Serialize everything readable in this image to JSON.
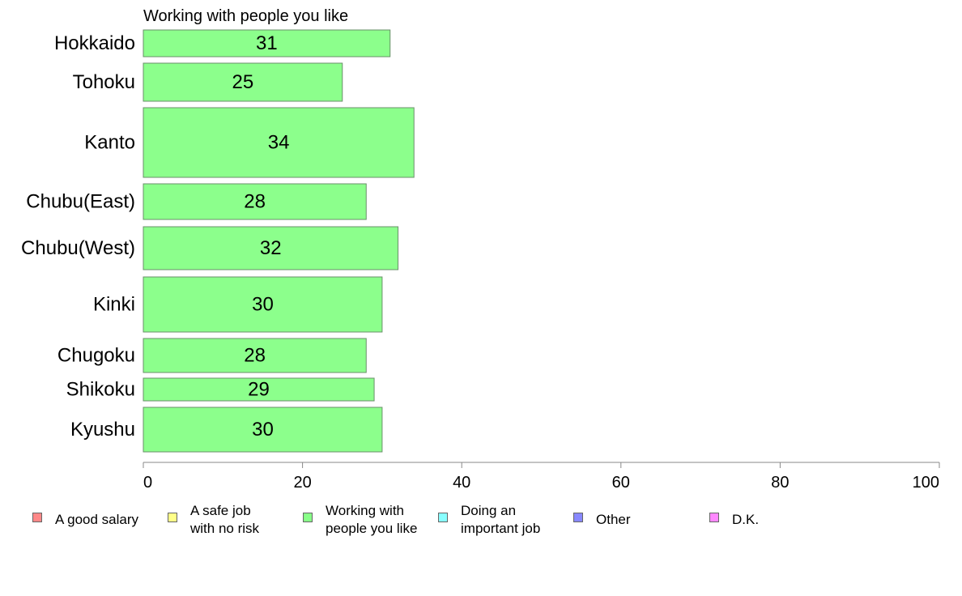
{
  "chart_data": {
    "type": "bar",
    "orientation": "horizontal",
    "title": "Working with people you like",
    "categories": [
      "Hokkaido",
      "Tohoku",
      "Kanto",
      "Chubu(East)",
      "Chubu(West)",
      "Kinki",
      "Chugoku",
      "Shikoku",
      "Kyushu"
    ],
    "values": [
      31,
      25,
      34,
      28,
      32,
      30,
      28,
      29,
      30
    ],
    "data_labels": [
      "31",
      "25",
      "34",
      "28",
      "32",
      "30",
      "28",
      "29",
      "30"
    ],
    "bar_color": "#8cff8c",
    "xlim": [
      0,
      100
    ],
    "xticks": [
      0,
      20,
      40,
      60,
      80,
      100
    ],
    "xtick_labels": [
      "0",
      "20",
      "40",
      "60",
      "80",
      "100"
    ],
    "grid": false,
    "legend_position": "bottom",
    "legend": [
      {
        "label": "A good salary",
        "color": "#ff8888"
      },
      {
        "label": "A safe job\nwith no risk",
        "color": "#ffff88"
      },
      {
        "label": "Working with\npeople you like",
        "color": "#88ff88"
      },
      {
        "label": "Doing an\nimportant job",
        "color": "#88ffff"
      },
      {
        "label": "Other",
        "color": "#8888ff"
      },
      {
        "label": "D.K.",
        "color": "#ff88ff"
      }
    ]
  }
}
